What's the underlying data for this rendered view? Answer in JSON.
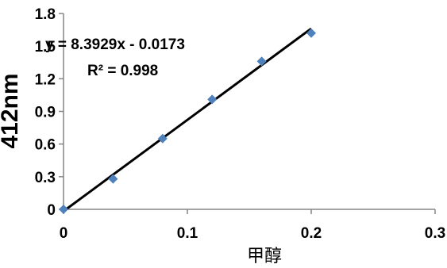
{
  "chart_data": {
    "type": "scatter",
    "title": "",
    "xlabel": "甲醇",
    "ylabel": "412nm",
    "xlim": [
      0,
      0.3
    ],
    "ylim": [
      0,
      1.8
    ],
    "x_ticks": [
      "0",
      "0.1",
      "0.2",
      "0.3"
    ],
    "y_ticks": [
      "0",
      "0.3",
      "0.6",
      "0.9",
      "1.2",
      "1.5",
      "1.8"
    ],
    "grid": false,
    "legend": "none",
    "marker_color": "#4f81bd",
    "series": [
      {
        "x": [
          0,
          0.04,
          0.08,
          0.12,
          0.16,
          0.2
        ],
        "y": [
          0.0,
          0.28,
          0.65,
          1.01,
          1.36,
          1.62
        ]
      }
    ],
    "trendline": {
      "slope": 8.3929,
      "intercept": -0.0173,
      "equation": "y = 8.3929x - 0.0173",
      "r_squared": "R² = 0.998"
    }
  }
}
